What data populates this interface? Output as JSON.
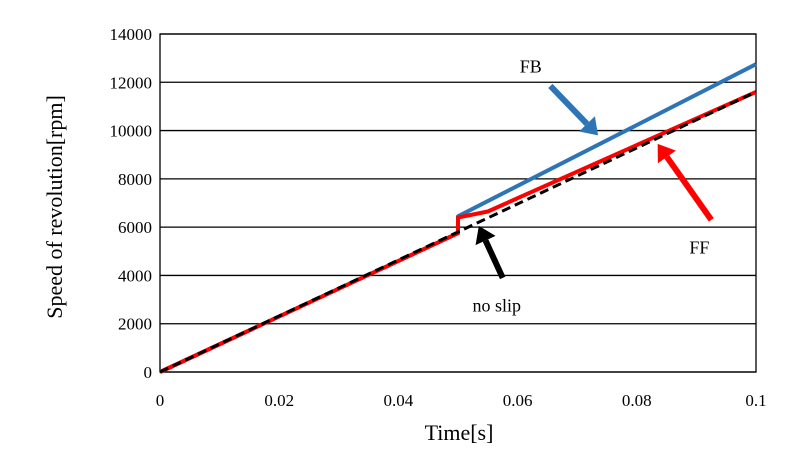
{
  "chart_data": {
    "type": "line",
    "title": "",
    "xlabel": "Time[s]",
    "ylabel": "Speed of revolution[rpm]",
    "xlim": [
      0,
      0.1
    ],
    "ylim": [
      0,
      14000
    ],
    "x_ticks": [
      "0",
      "0.02",
      "0.04",
      "0.06",
      "0.08",
      "0.1"
    ],
    "x_tick_values": [
      0,
      0.02,
      0.04,
      0.06,
      0.08,
      0.1
    ],
    "y_ticks": [
      "0",
      "2000",
      "4000",
      "6000",
      "8000",
      "10000",
      "12000",
      "14000"
    ],
    "y_tick_values": [
      0,
      2000,
      4000,
      6000,
      8000,
      10000,
      12000,
      14000
    ],
    "grid": "horizontal",
    "series": [
      {
        "name": "FB",
        "color": "#2E75B6",
        "dash": "solid",
        "points": [
          [
            0,
            0
          ],
          [
            0.05,
            5750
          ],
          [
            0.05,
            6450
          ],
          [
            0.1,
            12750
          ]
        ]
      },
      {
        "name": "FF",
        "color": "#FF0000",
        "dash": "solid",
        "points": [
          [
            0,
            0
          ],
          [
            0.05,
            5750
          ],
          [
            0.05,
            6400
          ],
          [
            0.055,
            6650
          ],
          [
            0.1,
            11600
          ]
        ]
      },
      {
        "name": "no slip",
        "color": "#000000",
        "dash": "dashed",
        "points": [
          [
            0,
            0
          ],
          [
            0.1,
            11600
          ]
        ]
      }
    ],
    "annotations": [
      {
        "text": "FB",
        "label_at": [
          0.0622,
          12400
        ],
        "arrow_from": [
          0.0655,
          11850
        ],
        "arrow_to": [
          0.0735,
          9800
        ],
        "color": "#2E75B6"
      },
      {
        "text": "FF",
        "label_at": [
          0.0905,
          4900
        ],
        "arrow_from": [
          0.0925,
          6300
        ],
        "arrow_to": [
          0.0835,
          9450
        ],
        "color": "#FF0000"
      },
      {
        "text": "no slip",
        "label_at": [
          0.0565,
          2500
        ],
        "arrow_from": [
          0.0575,
          3900
        ],
        "arrow_to": [
          0.0535,
          6050
        ],
        "color": "#000000"
      }
    ]
  }
}
